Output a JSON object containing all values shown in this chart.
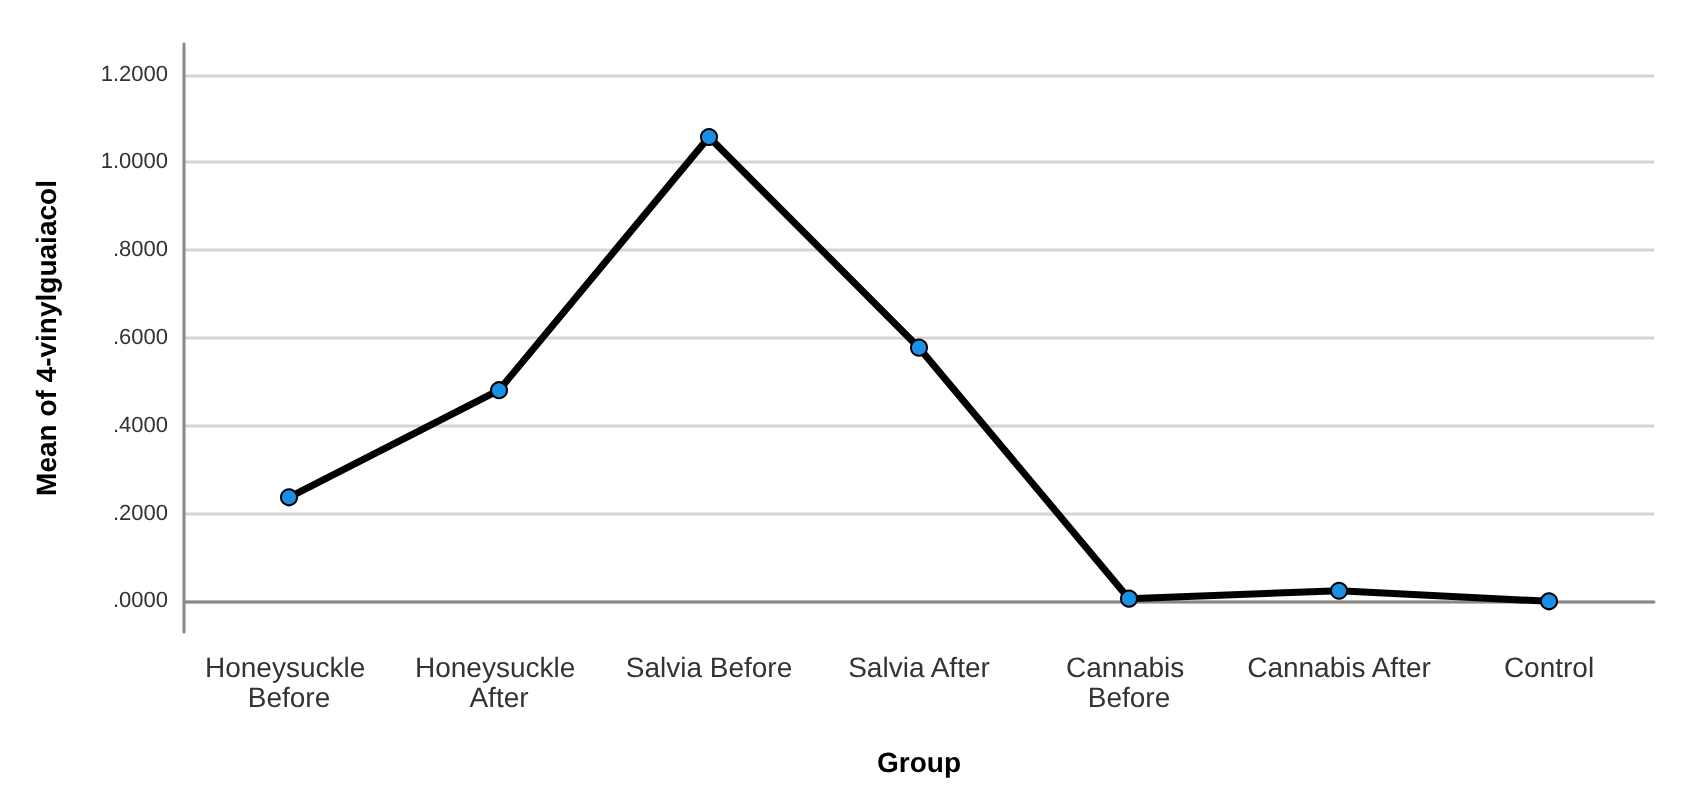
{
  "chart_data": {
    "type": "line",
    "xlabel": "Group",
    "ylabel": "Mean of 4-vinylguaiacol",
    "categories": [
      "Honeysuckle Before",
      "Honeysuckle After",
      "Salvia Before",
      "Salvia After",
      "Cannabis Before",
      "Cannabis After",
      "Control"
    ],
    "series": [
      {
        "color": "#000000",
        "values": [
          0.237,
          0.481,
          1.058,
          0.578,
          0.006,
          0.024,
          0.0
        ]
      }
    ],
    "ylim": [
      -0.07,
      1.27
    ],
    "yticks": [
      {
        "value": 0,
        "label": ".0000"
      },
      {
        "value": 0.2,
        "label": ".2000"
      },
      {
        "value": 0.4,
        "label": ".4000"
      },
      {
        "value": 0.6,
        "label": ".6000"
      },
      {
        "value": 0.8,
        "label": ".8000"
      },
      {
        "value": 1.0,
        "label": "1.0000"
      },
      {
        "value": 1.2,
        "label": "1.2000"
      }
    ],
    "grid": "y",
    "marker": "circle",
    "line_style": "solid"
  }
}
